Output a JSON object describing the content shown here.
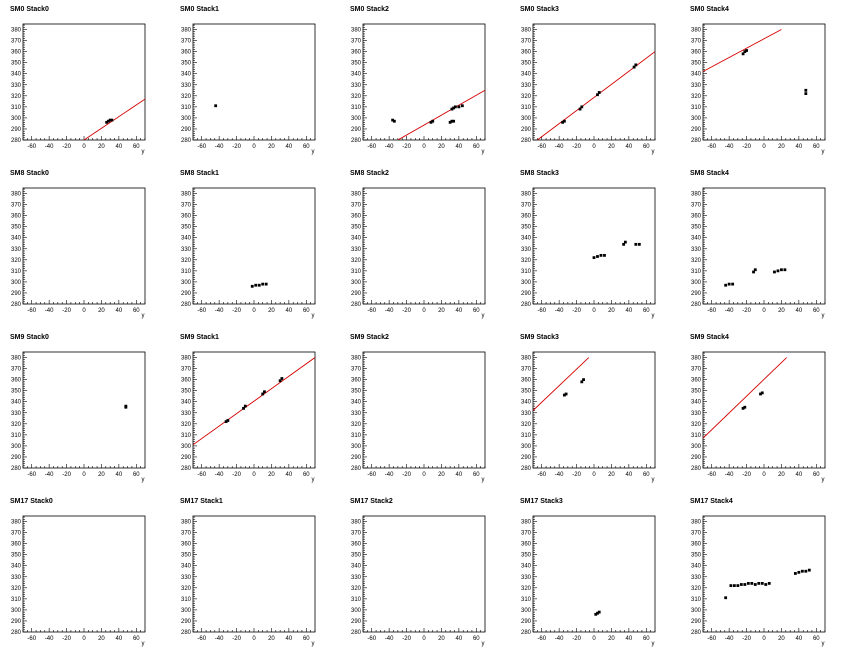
{
  "chart_data": [
    {
      "type": "scatter",
      "title": "SM0 Stack0",
      "xlabel": "y",
      "xlim": [
        -70,
        70
      ],
      "ylim": [
        280,
        385
      ],
      "xticks": [
        -60,
        -40,
        -20,
        0,
        20,
        40,
        60
      ],
      "yticks": [
        280,
        290,
        300,
        310,
        320,
        330,
        340,
        350,
        360,
        370,
        380
      ],
      "points": [
        [
          26,
          296
        ],
        [
          28,
          297
        ],
        [
          30,
          298
        ],
        [
          32,
          298
        ]
      ],
      "fit": [
        [
          0,
          280
        ],
        [
          70,
          317
        ]
      ],
      "fit_color": "#d40000"
    },
    {
      "type": "scatter",
      "title": "SM0 Stack1",
      "xlabel": "y",
      "xlim": [
        -70,
        70
      ],
      "ylim": [
        280,
        385
      ],
      "xticks": [
        -60,
        -40,
        -20,
        0,
        20,
        40,
        60
      ],
      "yticks": [
        280,
        290,
        300,
        310,
        320,
        330,
        340,
        350,
        360,
        370,
        380
      ],
      "points": [
        [
          -44,
          311
        ]
      ],
      "fit": null,
      "fit_color": "#d40000"
    },
    {
      "type": "scatter",
      "title": "SM0 Stack2",
      "xlabel": "y",
      "xlim": [
        -70,
        70
      ],
      "ylim": [
        280,
        385
      ],
      "xticks": [
        -60,
        -40,
        -20,
        0,
        20,
        40,
        60
      ],
      "yticks": [
        280,
        290,
        300,
        310,
        320,
        330,
        340,
        350,
        360,
        370,
        380
      ],
      "points": [
        [
          -36,
          298
        ],
        [
          -34,
          297
        ],
        [
          8,
          296
        ],
        [
          10,
          297
        ],
        [
          30,
          296
        ],
        [
          32,
          297
        ],
        [
          34,
          297
        ],
        [
          32,
          308
        ],
        [
          34,
          309
        ],
        [
          36,
          310
        ],
        [
          40,
          310
        ],
        [
          44,
          311
        ]
      ],
      "fit": [
        [
          -30,
          280
        ],
        [
          70,
          325
        ]
      ],
      "fit_color": "#d40000"
    },
    {
      "type": "scatter",
      "title": "SM0 Stack3",
      "xlabel": "y",
      "xlim": [
        -70,
        70
      ],
      "ylim": [
        280,
        385
      ],
      "xticks": [
        -60,
        -40,
        -20,
        0,
        20,
        40,
        60
      ],
      "yticks": [
        280,
        290,
        300,
        310,
        320,
        330,
        340,
        350,
        360,
        370,
        380
      ],
      "points": [
        [
          -36,
          296
        ],
        [
          -34,
          297
        ],
        [
          -16,
          308
        ],
        [
          -14,
          310
        ],
        [
          4,
          321
        ],
        [
          6,
          323
        ],
        [
          46,
          346
        ],
        [
          48,
          348
        ]
      ],
      "fit": [
        [
          -65,
          280
        ],
        [
          70,
          360
        ]
      ],
      "fit_color": "#d40000"
    },
    {
      "type": "scatter",
      "title": "SM0 Stack4",
      "xlabel": "y",
      "xlim": [
        -70,
        70
      ],
      "ylim": [
        280,
        385
      ],
      "xticks": [
        -60,
        -40,
        -20,
        0,
        20,
        40,
        60
      ],
      "yticks": [
        280,
        290,
        300,
        310,
        320,
        330,
        340,
        350,
        360,
        370,
        380
      ],
      "points": [
        [
          -24,
          358
        ],
        [
          -22,
          360
        ],
        [
          -20,
          361
        ],
        [
          48,
          322
        ],
        [
          48,
          325
        ]
      ],
      "fit": [
        [
          -70,
          342
        ],
        [
          20,
          380
        ]
      ],
      "fit_color": "#d40000"
    },
    {
      "type": "scatter",
      "title": "SM8 Stack0",
      "xlabel": "y",
      "xlim": [
        -70,
        70
      ],
      "ylim": [
        280,
        385
      ],
      "xticks": [
        -60,
        -40,
        -20,
        0,
        20,
        40,
        60
      ],
      "yticks": [
        280,
        290,
        300,
        310,
        320,
        330,
        340,
        350,
        360,
        370,
        380
      ],
      "points": [],
      "fit": null,
      "fit_color": "#d40000"
    },
    {
      "type": "scatter",
      "title": "SM8 Stack1",
      "xlabel": "y",
      "xlim": [
        -70,
        70
      ],
      "ylim": [
        280,
        385
      ],
      "xticks": [
        -60,
        -40,
        -20,
        0,
        20,
        40,
        60
      ],
      "yticks": [
        280,
        290,
        300,
        310,
        320,
        330,
        340,
        350,
        360,
        370,
        380
      ],
      "points": [
        [
          -2,
          296
        ],
        [
          2,
          297
        ],
        [
          6,
          297
        ],
        [
          10,
          298
        ],
        [
          14,
          298
        ]
      ],
      "fit": null,
      "fit_color": "#d40000"
    },
    {
      "type": "scatter",
      "title": "SM8 Stack2",
      "xlabel": "y",
      "xlim": [
        -70,
        70
      ],
      "ylim": [
        280,
        385
      ],
      "xticks": [
        -60,
        -40,
        -20,
        0,
        20,
        40,
        60
      ],
      "yticks": [
        280,
        290,
        300,
        310,
        320,
        330,
        340,
        350,
        360,
        370,
        380
      ],
      "points": [],
      "fit": null,
      "fit_color": "#d40000"
    },
    {
      "type": "scatter",
      "title": "SM8 Stack3",
      "xlabel": "y",
      "xlim": [
        -70,
        70
      ],
      "ylim": [
        280,
        385
      ],
      "xticks": [
        -60,
        -40,
        -20,
        0,
        20,
        40,
        60
      ],
      "yticks": [
        280,
        290,
        300,
        310,
        320,
        330,
        340,
        350,
        360,
        370,
        380
      ],
      "points": [
        [
          0,
          322
        ],
        [
          4,
          323
        ],
        [
          8,
          324
        ],
        [
          12,
          324
        ],
        [
          34,
          334
        ],
        [
          36,
          336
        ],
        [
          48,
          334
        ],
        [
          52,
          334
        ]
      ],
      "fit": null,
      "fit_color": "#d40000"
    },
    {
      "type": "scatter",
      "title": "SM8 Stack4",
      "xlabel": "y",
      "xlim": [
        -70,
        70
      ],
      "ylim": [
        280,
        385
      ],
      "xticks": [
        -60,
        -40,
        -20,
        0,
        20,
        40,
        60
      ],
      "yticks": [
        280,
        290,
        300,
        310,
        320,
        330,
        340,
        350,
        360,
        370,
        380
      ],
      "points": [
        [
          -44,
          297
        ],
        [
          -40,
          298
        ],
        [
          -36,
          298
        ],
        [
          -12,
          309
        ],
        [
          -10,
          311
        ],
        [
          12,
          309
        ],
        [
          16,
          310
        ],
        [
          20,
          311
        ],
        [
          24,
          311
        ]
      ],
      "fit": null,
      "fit_color": "#d40000"
    },
    {
      "type": "scatter",
      "title": "SM9 Stack0",
      "xlabel": "y",
      "xlim": [
        -70,
        70
      ],
      "ylim": [
        280,
        385
      ],
      "xticks": [
        -60,
        -40,
        -20,
        0,
        20,
        40,
        60
      ],
      "yticks": [
        280,
        290,
        300,
        310,
        320,
        330,
        340,
        350,
        360,
        370,
        380
      ],
      "points": [
        [
          48,
          336
        ],
        [
          48,
          335
        ]
      ],
      "fit": null,
      "fit_color": "#d40000"
    },
    {
      "type": "scatter",
      "title": "SM9 Stack1",
      "xlabel": "y",
      "xlim": [
        -70,
        70
      ],
      "ylim": [
        280,
        385
      ],
      "xticks": [
        -60,
        -40,
        -20,
        0,
        20,
        40,
        60
      ],
      "yticks": [
        280,
        290,
        300,
        310,
        320,
        330,
        340,
        350,
        360,
        370,
        380
      ],
      "points": [
        [
          -32,
          322
        ],
        [
          -30,
          323
        ],
        [
          -12,
          334
        ],
        [
          -10,
          336
        ],
        [
          10,
          347
        ],
        [
          12,
          349
        ],
        [
          30,
          359
        ],
        [
          32,
          361
        ]
      ],
      "fit": [
        [
          -70,
          301
        ],
        [
          70,
          380
        ]
      ],
      "fit_color": "#d40000"
    },
    {
      "type": "scatter",
      "title": "SM9 Stack2",
      "xlabel": "y",
      "xlim": [
        -70,
        70
      ],
      "ylim": [
        280,
        385
      ],
      "xticks": [
        -60,
        -40,
        -20,
        0,
        20,
        40,
        60
      ],
      "yticks": [
        280,
        290,
        300,
        310,
        320,
        330,
        340,
        350,
        360,
        370,
        380
      ],
      "points": [],
      "fit": null,
      "fit_color": "#d40000"
    },
    {
      "type": "scatter",
      "title": "SM9 Stack3",
      "xlabel": "y",
      "xlim": [
        -70,
        70
      ],
      "ylim": [
        280,
        385
      ],
      "xticks": [
        -60,
        -40,
        -20,
        0,
        20,
        40,
        60
      ],
      "yticks": [
        280,
        290,
        300,
        310,
        320,
        330,
        340,
        350,
        360,
        370,
        380
      ],
      "points": [
        [
          -34,
          346
        ],
        [
          -32,
          347
        ],
        [
          -14,
          358
        ],
        [
          -12,
          360
        ]
      ],
      "fit": [
        [
          -70,
          332
        ],
        [
          -6,
          380
        ]
      ],
      "fit_color": "#d40000"
    },
    {
      "type": "scatter",
      "title": "SM9 Stack4",
      "xlabel": "y",
      "xlim": [
        -70,
        70
      ],
      "ylim": [
        280,
        385
      ],
      "xticks": [
        -60,
        -40,
        -20,
        0,
        20,
        40,
        60
      ],
      "yticks": [
        280,
        290,
        300,
        310,
        320,
        330,
        340,
        350,
        360,
        370,
        380
      ],
      "points": [
        [
          -24,
          334
        ],
        [
          -22,
          335
        ],
        [
          -4,
          347
        ],
        [
          -2,
          348
        ]
      ],
      "fit": [
        [
          -70,
          307
        ],
        [
          26,
          380
        ]
      ],
      "fit_color": "#d40000"
    },
    {
      "type": "scatter",
      "title": "SM17 Stack0",
      "xlabel": "y",
      "xlim": [
        -70,
        70
      ],
      "ylim": [
        280,
        385
      ],
      "xticks": [
        -60,
        -40,
        -20,
        0,
        20,
        40,
        60
      ],
      "yticks": [
        280,
        290,
        300,
        310,
        320,
        330,
        340,
        350,
        360,
        370,
        380
      ],
      "points": [],
      "fit": null,
      "fit_color": "#d40000"
    },
    {
      "type": "scatter",
      "title": "SM17 Stack1",
      "xlabel": "y",
      "xlim": [
        -70,
        70
      ],
      "ylim": [
        280,
        385
      ],
      "xticks": [
        -60,
        -40,
        -20,
        0,
        20,
        40,
        60
      ],
      "yticks": [
        280,
        290,
        300,
        310,
        320,
        330,
        340,
        350,
        360,
        370,
        380
      ],
      "points": [],
      "fit": null,
      "fit_color": "#d40000"
    },
    {
      "type": "scatter",
      "title": "SM17 Stack2",
      "xlabel": "y",
      "xlim": [
        -70,
        70
      ],
      "ylim": [
        280,
        385
      ],
      "xticks": [
        -60,
        -40,
        -20,
        0,
        20,
        40,
        60
      ],
      "yticks": [
        280,
        290,
        300,
        310,
        320,
        330,
        340,
        350,
        360,
        370,
        380
      ],
      "points": [],
      "fit": null,
      "fit_color": "#d40000"
    },
    {
      "type": "scatter",
      "title": "SM17 Stack3",
      "xlabel": "y",
      "xlim": [
        -70,
        70
      ],
      "ylim": [
        280,
        385
      ],
      "xticks": [
        -60,
        -40,
        -20,
        0,
        20,
        40,
        60
      ],
      "yticks": [
        280,
        290,
        300,
        310,
        320,
        330,
        340,
        350,
        360,
        370,
        380
      ],
      "points": [
        [
          2,
          296
        ],
        [
          4,
          297
        ],
        [
          6,
          298
        ]
      ],
      "fit": null,
      "fit_color": "#d40000"
    },
    {
      "type": "scatter",
      "title": "SM17 Stack4",
      "xlabel": "y",
      "xlim": [
        -70,
        70
      ],
      "ylim": [
        280,
        385
      ],
      "xticks": [
        -60,
        -40,
        -20,
        0,
        20,
        40,
        60
      ],
      "yticks": [
        280,
        290,
        300,
        310,
        320,
        330,
        340,
        350,
        360,
        370,
        380
      ],
      "points": [
        [
          -44,
          311
        ],
        [
          -38,
          322
        ],
        [
          -34,
          322
        ],
        [
          -30,
          322
        ],
        [
          -26,
          323
        ],
        [
          -22,
          323
        ],
        [
          -18,
          324
        ],
        [
          -14,
          324
        ],
        [
          -10,
          323
        ],
        [
          -6,
          324
        ],
        [
          -2,
          324
        ],
        [
          2,
          323
        ],
        [
          6,
          324
        ],
        [
          36,
          333
        ],
        [
          40,
          334
        ],
        [
          44,
          335
        ],
        [
          48,
          335
        ],
        [
          52,
          336
        ]
      ],
      "fit": null,
      "fit_color": "#d40000"
    }
  ]
}
